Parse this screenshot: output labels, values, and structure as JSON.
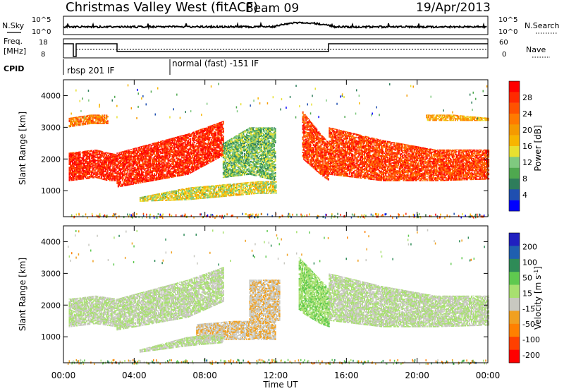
{
  "header": {
    "title": "Christmas Valley West (fitACF)",
    "beam": "Beam 09",
    "date": "19/Apr/2013"
  },
  "status_panels": {
    "nsky_label": "N.Sky",
    "nsearch_label": "N.Search",
    "nsky_ticks": [
      "10^5",
      "10^0"
    ],
    "nsearch_ticks": [
      "10^5",
      "10^0"
    ],
    "freq_label_line1": "Freq.",
    "freq_label_line2": "[MHz]",
    "freq_ticks": [
      "18",
      "8"
    ],
    "nave_label": "Nave",
    "nave_ticks": [
      "60",
      "0"
    ],
    "cpid_label": "CPID",
    "cpid_segments": [
      {
        "label": "rbsp 201 IF",
        "start_hour": 0.0
      },
      {
        "label": "normal (fast) -151 IF",
        "start_hour": 6.0
      }
    ]
  },
  "chart_data": [
    {
      "type": "heatmap",
      "title": "",
      "ylabel": "Slant Range [km]",
      "xlabel": "",
      "xlim": [
        0,
        24
      ],
      "ylim": [
        180,
        4500
      ],
      "x_ticks": [
        0,
        4,
        8,
        12,
        16,
        20,
        24
      ],
      "y_ticks": [
        1000,
        2000,
        3000,
        4000
      ],
      "colorbar": {
        "label": "Power [dB]",
        "ticks": [
          "4",
          "8",
          "12",
          "16",
          "20",
          "24",
          "28"
        ],
        "colors": [
          "#0000ff",
          "#1f4fb0",
          "#2e7d5b",
          "#4fa84f",
          "#7fc97f",
          "#e8e030",
          "#f7b500",
          "#f59a00",
          "#ff7a00",
          "#ff5200",
          "#ff2a00",
          "#ff0000"
        ]
      },
      "regions": [
        {
          "feature": "red band",
          "level": 28,
          "x": [
            0.3,
            1.8,
            2.5,
            3.0
          ],
          "y_low": [
            1300,
            1400,
            1300,
            1300
          ],
          "y_high": [
            2200,
            2300,
            2200,
            2150
          ]
        },
        {
          "feature": "red band",
          "level": 28,
          "x": [
            3.0,
            5.0,
            7.0,
            9.0
          ],
          "y_low": [
            1100,
            1300,
            1500,
            2100
          ],
          "y_high": [
            2200,
            2500,
            2800,
            3200
          ]
        },
        {
          "feature": "green-orange lower band",
          "level": 14,
          "x": [
            4.3,
            7.0,
            9.0,
            11.0,
            12.0
          ],
          "y_low": [
            650,
            700,
            800,
            900,
            900
          ],
          "y_high": [
            800,
            1100,
            1200,
            1300,
            1300
          ]
        },
        {
          "feature": "green-blue cloud",
          "level": 10,
          "x": [
            9.0,
            10.5,
            12.0
          ],
          "y_low": [
            1400,
            1500,
            1300
          ],
          "y_high": [
            2500,
            3000,
            3000
          ]
        },
        {
          "feature": "red descending band",
          "level": 26,
          "x": [
            13.5,
            14.5,
            15.0
          ],
          "y_low": [
            2000,
            1500,
            1300
          ],
          "y_high": [
            3500,
            2800,
            2500
          ]
        },
        {
          "feature": "red band",
          "level": 26,
          "x": [
            15.0,
            18.0,
            21.0,
            24.0
          ],
          "y_low": [
            1500,
            1300,
            1300,
            1350
          ],
          "y_high": [
            3000,
            2600,
            2300,
            2300
          ]
        },
        {
          "feature": "early upper band",
          "level": 22,
          "x": [
            0.3,
            1.5,
            2.5
          ],
          "y_low": [
            3000,
            3100,
            3100
          ],
          "y_high": [
            3300,
            3400,
            3400
          ]
        },
        {
          "feature": "late upper band",
          "level": 18,
          "x": [
            20.5,
            22.0,
            24.0
          ],
          "y_low": [
            3200,
            3200,
            3200
          ],
          "y_high": [
            3400,
            3400,
            3300
          ]
        }
      ]
    },
    {
      "type": "heatmap",
      "title": "",
      "ylabel": "Slant Range [km]",
      "xlabel": "Time UT",
      "xlim": [
        0,
        24
      ],
      "ylim": [
        180,
        4500
      ],
      "x_ticks": [
        0,
        4,
        8,
        12,
        16,
        20,
        24
      ],
      "x_tick_labels": [
        "00:00",
        "04:00",
        "08:00",
        "12:00",
        "16:00",
        "20:00",
        "00:00"
      ],
      "y_ticks": [
        1000,
        2000,
        3000,
        4000
      ],
      "colorbar": {
        "label": "Velocity [m s^-1]",
        "ticks": [
          "200",
          "100",
          "50",
          "15",
          "-15",
          "-50",
          "-100",
          "-200"
        ],
        "colors": [
          "#2020c0",
          "#1f5fb0",
          "#2e8b57",
          "#5fc94f",
          "#a8e070",
          "#c8c8c0",
          "#f0a020",
          "#ff8000",
          "#ff4000",
          "#ff0000"
        ]
      },
      "regions": [
        {
          "feature": "grey band",
          "level": 0,
          "x": [
            0.3,
            1.8,
            3.0
          ],
          "y_low": [
            1300,
            1400,
            1300
          ],
          "y_high": [
            2200,
            2300,
            2200
          ]
        },
        {
          "feature": "grey band",
          "level": 0,
          "x": [
            3.0,
            5.0,
            7.0,
            9.0
          ],
          "y_low": [
            1200,
            1400,
            1600,
            2100
          ],
          "y_high": [
            2200,
            2500,
            2800,
            3200
          ]
        },
        {
          "feature": "orange region",
          "level": -40,
          "x": [
            7.5,
            9.5,
            12.0
          ],
          "y_low": [
            900,
            900,
            900
          ],
          "y_high": [
            1400,
            1500,
            1500
          ]
        },
        {
          "feature": "orange vertical streaks",
          "level": -40,
          "x": [
            10.5,
            11.5,
            12.2
          ],
          "y_low": [
            1500,
            1500,
            1500
          ],
          "y_high": [
            2800,
            2800,
            2800
          ]
        },
        {
          "feature": "green descending band",
          "level": 40,
          "x": [
            13.3,
            14.5,
            15.0
          ],
          "y_low": [
            1800,
            1400,
            1300
          ],
          "y_high": [
            3500,
            2800,
            2500
          ]
        },
        {
          "feature": "grey band",
          "level": 0,
          "x": [
            15.0,
            18.0,
            21.0,
            24.0
          ],
          "y_low": [
            1500,
            1300,
            1300,
            1350
          ],
          "y_high": [
            3000,
            2600,
            2300,
            2300
          ]
        },
        {
          "feature": "grey lower band",
          "level": 0,
          "x": [
            4.3,
            7.0,
            9.0
          ],
          "y_low": [
            500,
            700,
            800
          ],
          "y_high": [
            600,
            1000,
            1100
          ]
        }
      ]
    }
  ]
}
